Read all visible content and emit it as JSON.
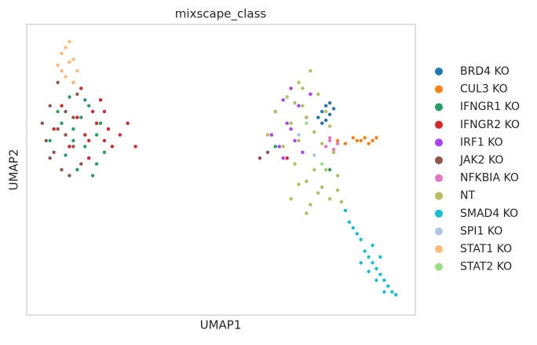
{
  "chart_data": {
    "type": "scatter",
    "title": "mixscape_class",
    "xlabel": "UMAP1",
    "ylabel": "UMAP2",
    "xlim": [
      0,
      100
    ],
    "ylim": [
      0,
      100
    ],
    "grid": false,
    "legend": "right",
    "series": [
      {
        "name": "BRD4 KO",
        "color": "#1f77b4",
        "x": [
          75,
          76,
          77,
          78,
          78,
          79,
          76,
          77
        ],
        "y": [
          68,
          70,
          72,
          69,
          73,
          71,
          66,
          67
        ]
      },
      {
        "name": "CUL3 KO",
        "color": "#ff7f0e",
        "x": [
          80,
          82,
          84,
          85,
          86,
          87,
          88,
          89,
          90
        ],
        "y": [
          60,
          59,
          61,
          60,
          60,
          61,
          59,
          60,
          61
        ]
      },
      {
        "name": "IFNGR1 KO",
        "color": "#279e68",
        "x": [
          6,
          8,
          10,
          11,
          12,
          13,
          14,
          15,
          16,
          17,
          18,
          19,
          20,
          9,
          12,
          15,
          18,
          64,
          78
        ],
        "y": [
          60,
          70,
          55,
          75,
          64,
          50,
          68,
          58,
          72,
          48,
          62,
          66,
          56,
          66,
          60,
          74,
          52,
          58,
          50
        ]
      },
      {
        "name": "IFNGR2 KO",
        "color": "#d62728",
        "x": [
          7,
          9,
          11,
          13,
          14,
          15,
          16,
          17,
          18,
          19,
          20,
          21,
          22,
          24,
          26,
          28,
          12,
          16,
          20,
          67
        ],
        "y": [
          64,
          72,
          58,
          68,
          78,
          62,
          54,
          70,
          66,
          74,
          60,
          64,
          58,
          62,
          66,
          58,
          80,
          60,
          70,
          54
        ]
      },
      {
        "name": "IRF1 KO",
        "color": "#aa40fc",
        "x": [
          63,
          64,
          65,
          66,
          67,
          68,
          69,
          70,
          71,
          72,
          73,
          66,
          68
        ],
        "y": [
          62,
          70,
          58,
          74,
          66,
          78,
          60,
          72,
          56,
          68,
          76,
          54,
          64
        ]
      },
      {
        "name": "JAK2 KO",
        "color": "#8c564b",
        "x": [
          4,
          5,
          6,
          7,
          8,
          9,
          10,
          11,
          12,
          13,
          14,
          8,
          10,
          12,
          6,
          60,
          62
        ],
        "y": [
          66,
          60,
          72,
          56,
          64,
          50,
          70,
          48,
          58,
          76,
          52,
          80,
          62,
          68,
          54,
          54,
          56
        ]
      },
      {
        "name": "NFKBIA KO",
        "color": "#e377c2",
        "x": [
          77,
          78,
          79,
          80,
          78,
          79
        ],
        "y": [
          58,
          60,
          57,
          59,
          61,
          56
        ]
      },
      {
        "name": "NT",
        "color": "#b5bd61",
        "x": [
          62,
          64,
          66,
          67,
          68,
          69,
          70,
          70,
          71,
          72,
          72,
          73,
          74,
          74,
          75,
          75,
          76,
          77,
          77,
          78,
          79,
          80,
          68,
          70,
          73,
          76,
          78,
          72,
          74,
          71,
          69,
          80,
          81,
          82
        ],
        "y": [
          62,
          70,
          58,
          75,
          66,
          52,
          80,
          60,
          72,
          46,
          68,
          84,
          55,
          63,
          76,
          42,
          59,
          50,
          70,
          65,
          56,
          48,
          40,
          45,
          38,
          44,
          40,
          35,
          50,
          78,
          73,
          43,
          39,
          36
        ]
      },
      {
        "name": "SMAD4 KO",
        "color": "#17becf",
        "x": [
          82,
          83,
          84,
          85,
          86,
          87,
          88,
          89,
          90,
          91,
          92,
          93,
          94,
          95,
          86,
          88,
          90,
          92,
          89,
          91
        ],
        "y": [
          36,
          32,
          30,
          28,
          26,
          22,
          20,
          18,
          16,
          14,
          12,
          10,
          8,
          7,
          18,
          15,
          12,
          8,
          24,
          20
        ]
      },
      {
        "name": "SPI1 KO",
        "color": "#aec7e8",
        "x": [
          70,
          74
        ],
        "y": [
          62,
          55
        ]
      },
      {
        "name": "STAT1 KO",
        "color": "#ffbb78",
        "x": [
          8,
          9,
          10,
          11,
          12,
          13,
          10,
          12,
          9,
          11
        ],
        "y": [
          86,
          90,
          82,
          94,
          88,
          84,
          92,
          80,
          84,
          87
        ]
      },
      {
        "name": "STAT2 KO",
        "color": "#98df8a",
        "x": [
          72,
          76
        ],
        "y": [
          66,
          52
        ]
      }
    ]
  }
}
